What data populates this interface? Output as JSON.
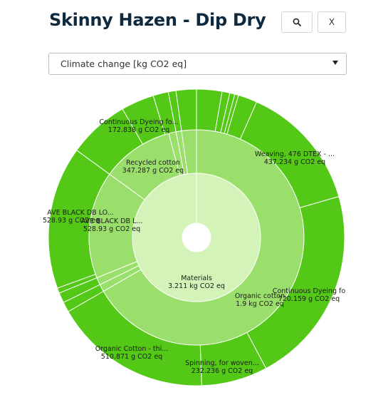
{
  "header": {
    "title": "Skinny Hazen - Dip Dry"
  },
  "toolbar": {
    "close_label": "X"
  },
  "icons": {
    "search": "search-icon",
    "dropdown": "chevron-down-icon"
  },
  "impact_select": {
    "value": "Climate change [kg CO2 eq]"
  },
  "colors": {
    "outer": "#54c816",
    "middle": "#9adf6b",
    "inner": "#d3f3b8",
    "border": "#ffffff"
  },
  "chart_data": {
    "type": "sunburst",
    "unit": "kg CO2 eq",
    "root": {
      "name": "Materials",
      "value_label": "3.211 kg CO2 eq",
      "value": 3.211
    },
    "children": [
      {
        "name": "Recycled cotton",
        "value_label": "347.287 g CO2 eq",
        "value": 0.347287,
        "children": [
          {
            "name": "Continuous Dyeing fo...",
            "value_label": "172.838 g CO2 eq",
            "value": 0.172838
          }
        ]
      },
      {
        "name": "AVE BLACK DB L...",
        "value_label": "528.93 g CO2 eq",
        "value": 0.52893,
        "children": [
          {
            "name": "AVE BLACK DB LO...",
            "value_label": "528.93 g CO2 eq",
            "value": 0.52893
          }
        ]
      },
      {
        "name": "Organic cotton",
        "value_label": "1.9 kg CO2 eq",
        "value": 1.9,
        "children": [
          {
            "name": "Weaving, 476 DTEX - ...",
            "value_label": "437.234 g CO2 eq",
            "value": 0.437234
          },
          {
            "name": "Continuous Dyeing fo",
            "value_label": "720.159 g CO2 eq",
            "value": 0.720159
          },
          {
            "name": "Spinning, for woven...",
            "value_label": "232.236 g CO2 eq",
            "value": 0.232236
          },
          {
            "name": "Organic Cotton - thi...",
            "value_label": "510.871 g CO2 eq",
            "value": 0.510871
          }
        ]
      }
    ],
    "labels": {
      "root_name": "Materials",
      "root_value": "3.211 kg CO2 eq",
      "recycled_name": "Recycled cotton",
      "recycled_value": "347.287 g CO2 eq",
      "ave_mid_name": "AVE BLACK DB L...",
      "ave_mid_value": "528.93 g CO2 eq",
      "organic_name": "Organic cotton",
      "organic_value": "1.9 kg CO2 eq",
      "dyeing1_name": "Continuous Dyeing fo...",
      "dyeing1_value": "172.838 g CO2 eq",
      "weaving_name": "Weaving, 476 DTEX - ...",
      "weaving_value": "437.234 g CO2 eq",
      "ave_out_name": "AVE BLACK DB LO...",
      "ave_out_value": "528.93 g CO2 eq",
      "dyeing2_name": "Continuous Dyeing fo",
      "dyeing2_value": "720.159 g CO2 eq",
      "spinning_name": "Spinning, for woven...",
      "spinning_value": "232.236 g CO2 eq",
      "orgthin_name": "Organic Cotton - thi...",
      "orgthin_value": "510.871 g CO2 eq"
    }
  }
}
